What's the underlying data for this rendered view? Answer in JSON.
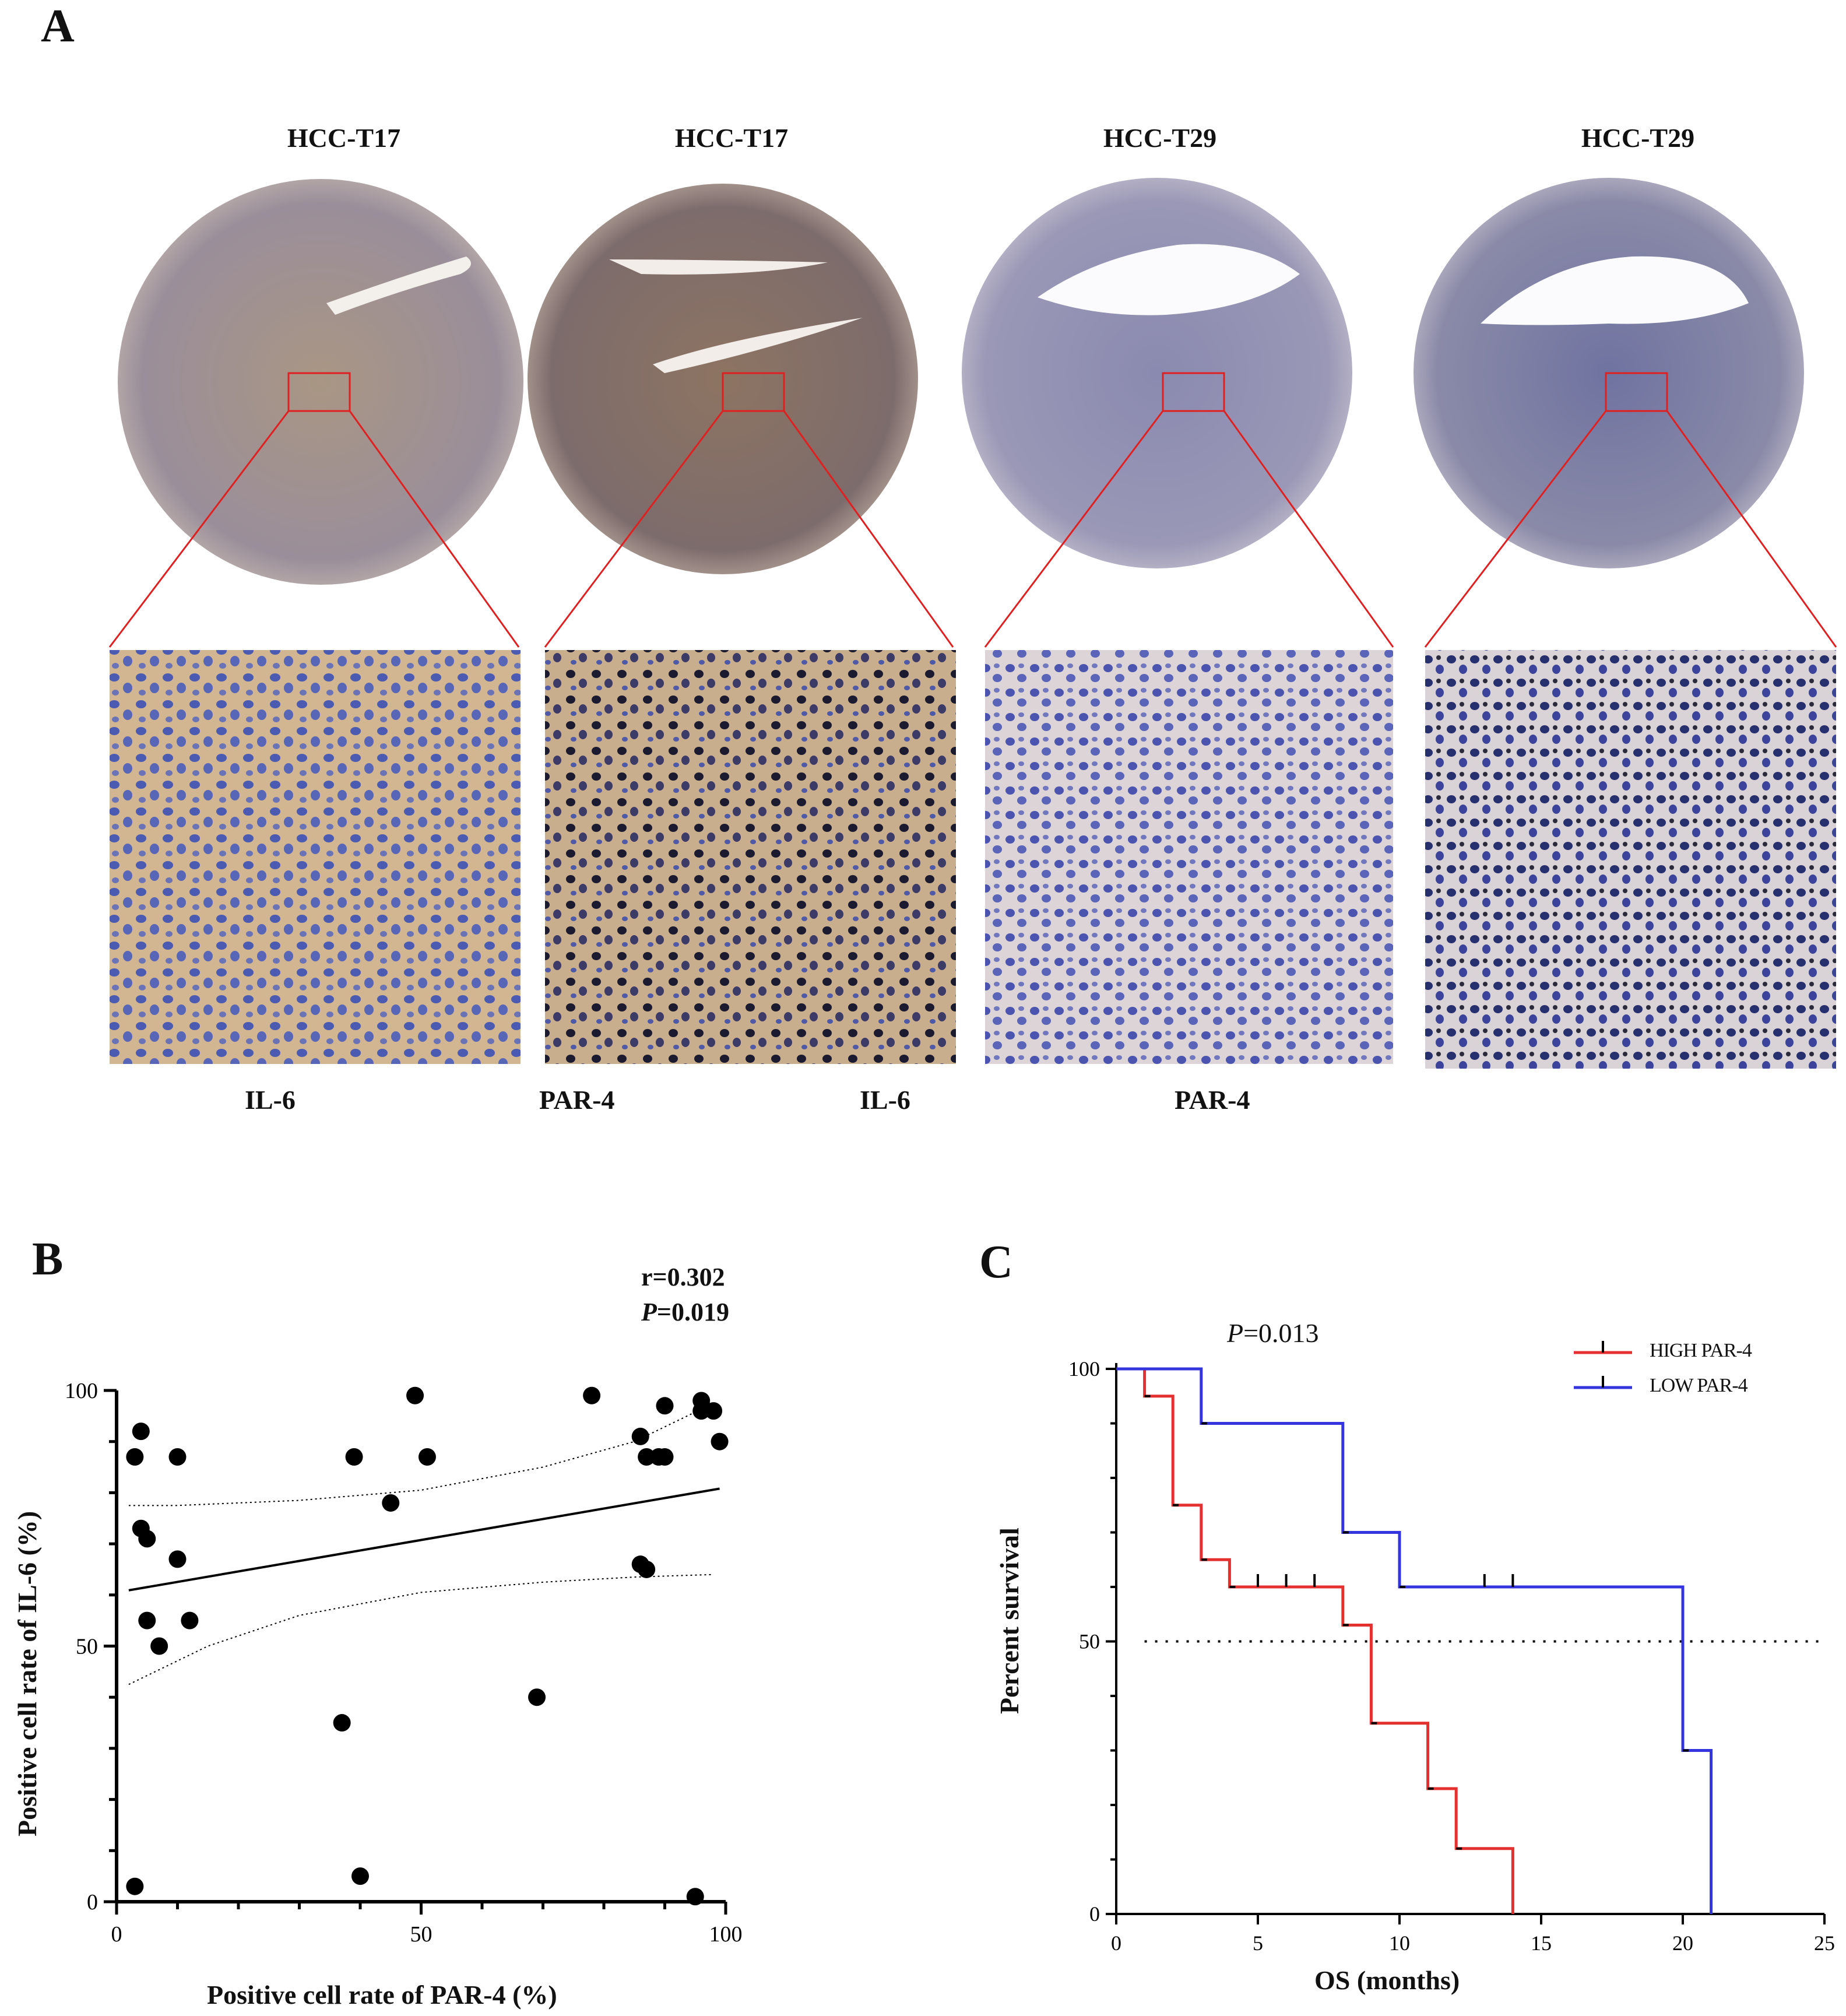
{
  "panelA": {
    "letter": "A",
    "core_titles": [
      "HCC-T17",
      "HCC-T17",
      "HCC-T29",
      "HCC-T29"
    ],
    "stain_labels": [
      "IL-6",
      "PAR-4",
      "IL-6",
      "PAR-4"
    ],
    "colors": {
      "box": "#e02020",
      "hematoxylin": "#3d4fb0",
      "dab": "#a5793f",
      "tissue_bg": "#d8cfc6"
    }
  },
  "panelB": {
    "letter": "B",
    "stat_r": "r=0.302",
    "stat_p_italic": "P",
    "stat_p_value": "=0.019",
    "xlabel": "Positive cell rate of PAR-4 (%)",
    "ylabel": "Positive cell rate of IL-6 (%)",
    "xticks": [
      "0",
      "50",
      "100"
    ],
    "yticks": [
      "0",
      "50",
      "100"
    ]
  },
  "panelC": {
    "letter": "C",
    "p_italic": "P",
    "p_value": "=0.013",
    "xlabel": "OS (months)",
    "ylabel": "Percent survival",
    "xticks": [
      "0",
      "5",
      "10",
      "15",
      "20",
      "25"
    ],
    "yticks": [
      "0",
      "50",
      "100"
    ],
    "legend": [
      "HIGH PAR-4",
      "LOW PAR-4"
    ]
  },
  "chart_data": [
    {
      "type": "scatter",
      "xlabel": "Positive cell rate of PAR-4 (%)",
      "ylabel": "Positive cell rate of IL-6 (%)",
      "xlim": [
        0,
        100
      ],
      "ylim": [
        0,
        100
      ],
      "annotations": [
        "r=0.302",
        "P=0.019"
      ],
      "points": [
        [
          3,
          3
        ],
        [
          3,
          87
        ],
        [
          4,
          73
        ],
        [
          4,
          92
        ],
        [
          5,
          71
        ],
        [
          5,
          55
        ],
        [
          7,
          50
        ],
        [
          10,
          67
        ],
        [
          10,
          87
        ],
        [
          12,
          55
        ],
        [
          37,
          35
        ],
        [
          39,
          87
        ],
        [
          40,
          5
        ],
        [
          45,
          78
        ],
        [
          49,
          99
        ],
        [
          51,
          87
        ],
        [
          69,
          40
        ],
        [
          78,
          99
        ],
        [
          86,
          91
        ],
        [
          86,
          66
        ],
        [
          87,
          65
        ],
        [
          87,
          87
        ],
        [
          89,
          87
        ],
        [
          90,
          97
        ],
        [
          90,
          87
        ],
        [
          95,
          1
        ],
        [
          96,
          98
        ],
        [
          96,
          96
        ],
        [
          98,
          96
        ],
        [
          99,
          90
        ]
      ],
      "fit": {
        "x": [
          0,
          100
        ],
        "y": [
          60.5,
          81
        ]
      },
      "ci_upper": {
        "x": [
          2,
          10,
          30,
          50,
          70,
          85,
          98
        ],
        "y": [
          77.5,
          77.5,
          78.5,
          80.5,
          85,
          90,
          97.5
        ]
      },
      "ci_lower": {
        "x": [
          2,
          15,
          30,
          50,
          70,
          85,
          98
        ],
        "y": [
          42.5,
          50,
          56,
          60.5,
          62.5,
          63.5,
          64
        ]
      }
    },
    {
      "type": "line",
      "title": "",
      "xlabel": "OS (months)",
      "ylabel": "Percent survival",
      "xlim": [
        0,
        25
      ],
      "ylim": [
        0,
        100
      ],
      "series": [
        {
          "name": "HIGH PAR-4",
          "color": "#e53030",
          "steps": [
            [
              0,
              100
            ],
            [
              1,
              95
            ],
            [
              2,
              75
            ],
            [
              3,
              65
            ],
            [
              4,
              60
            ],
            [
              8,
              53
            ],
            [
              9,
              35
            ],
            [
              11,
              23
            ],
            [
              12,
              12
            ],
            [
              14,
              0
            ]
          ],
          "censored": [
            [
              5,
              60
            ],
            [
              6,
              60
            ],
            [
              7,
              60
            ]
          ]
        },
        {
          "name": "LOW PAR-4",
          "color": "#3535e0",
          "steps": [
            [
              0,
              100
            ],
            [
              3,
              90
            ],
            [
              8,
              70
            ],
            [
              10,
              60
            ],
            [
              20,
              30
            ],
            [
              21,
              0
            ]
          ],
          "censored": [
            [
              13,
              60
            ],
            [
              14,
              60
            ]
          ]
        }
      ],
      "reference_line": {
        "y": 50,
        "style": "dotted"
      },
      "annotations": [
        "P=0.013"
      ]
    }
  ]
}
